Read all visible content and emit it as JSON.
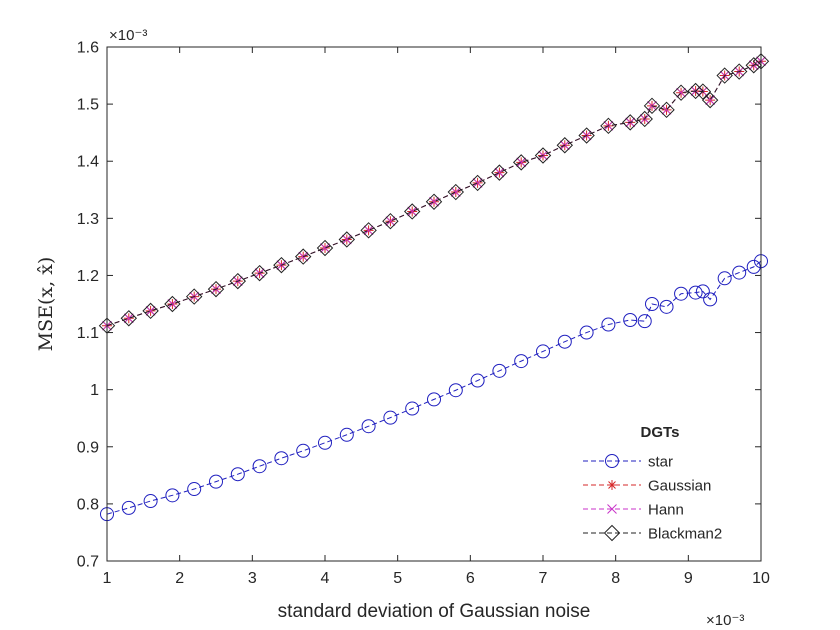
{
  "chart_data": {
    "type": "line",
    "xlabel": "standard deviation of Gaussian noise",
    "ylabel": "MSE(x, x̂)",
    "x_exponent": "×10⁻³",
    "y_exponent": "×10⁻³",
    "xlim": [
      1,
      10
    ],
    "ylim": [
      0.7,
      1.6
    ],
    "xticks": [
      "1",
      "2",
      "3",
      "4",
      "5",
      "6",
      "7",
      "8",
      "9",
      "10"
    ],
    "yticks": [
      "0.7",
      "0.8",
      "0.9",
      "1",
      "1.1",
      "1.2",
      "1.3",
      "1.4",
      "1.5",
      "1.6"
    ],
    "legend": {
      "title": "DGTs",
      "position": "bottom-right",
      "entries": [
        "star",
        "Gaussian",
        "Hann",
        "Blackman2"
      ]
    },
    "grid": false,
    "series": [
      {
        "name": "star",
        "color": "#1f1fbf",
        "marker": "circle",
        "x": [
          1.0,
          1.3,
          1.6,
          1.9,
          2.2,
          2.5,
          2.8,
          3.1,
          3.4,
          3.7,
          4.0,
          4.3,
          4.6,
          4.9,
          5.2,
          5.5,
          5.8,
          6.1,
          6.4,
          6.7,
          7.0,
          7.3,
          7.6,
          7.9,
          8.2,
          8.4,
          8.5,
          8.7,
          8.9,
          9.1,
          9.2,
          9.3,
          9.5,
          9.7,
          9.9,
          10.0
        ],
        "y": [
          0.782,
          0.793,
          0.805,
          0.815,
          0.826,
          0.839,
          0.852,
          0.866,
          0.88,
          0.893,
          0.907,
          0.921,
          0.936,
          0.951,
          0.967,
          0.983,
          0.999,
          1.016,
          1.033,
          1.05,
          1.067,
          1.084,
          1.1,
          1.114,
          1.122,
          1.12,
          1.15,
          1.145,
          1.168,
          1.17,
          1.172,
          1.158,
          1.195,
          1.205,
          1.215,
          1.225
        ]
      },
      {
        "name": "Gaussian",
        "color": "#d62728",
        "marker": "asterisk",
        "x": [
          1.0,
          1.3,
          1.6,
          1.9,
          2.2,
          2.5,
          2.8,
          3.1,
          3.4,
          3.7,
          4.0,
          4.3,
          4.6,
          4.9,
          5.2,
          5.5,
          5.8,
          6.1,
          6.4,
          6.7,
          7.0,
          7.3,
          7.6,
          7.9,
          8.2,
          8.4,
          8.5,
          8.7,
          8.9,
          9.1,
          9.2,
          9.3,
          9.5,
          9.7,
          9.9,
          10.0
        ],
        "y": [
          1.112,
          1.125,
          1.138,
          1.15,
          1.163,
          1.176,
          1.19,
          1.204,
          1.218,
          1.233,
          1.248,
          1.263,
          1.279,
          1.295,
          1.312,
          1.329,
          1.346,
          1.362,
          1.38,
          1.398,
          1.41,
          1.428,
          1.445,
          1.462,
          1.468,
          1.474,
          1.497,
          1.49,
          1.52,
          1.523,
          1.522,
          1.507,
          1.55,
          1.557,
          1.568,
          1.575
        ]
      },
      {
        "name": "Hann",
        "color": "#c832c8",
        "marker": "cross",
        "x": [
          1.0,
          1.3,
          1.6,
          1.9,
          2.2,
          2.5,
          2.8,
          3.1,
          3.4,
          3.7,
          4.0,
          4.3,
          4.6,
          4.9,
          5.2,
          5.5,
          5.8,
          6.1,
          6.4,
          6.7,
          7.0,
          7.3,
          7.6,
          7.9,
          8.2,
          8.4,
          8.5,
          8.7,
          8.9,
          9.1,
          9.2,
          9.3,
          9.5,
          9.7,
          9.9,
          10.0
        ],
        "y": [
          1.112,
          1.125,
          1.138,
          1.15,
          1.163,
          1.176,
          1.19,
          1.204,
          1.218,
          1.233,
          1.248,
          1.263,
          1.279,
          1.295,
          1.312,
          1.329,
          1.346,
          1.362,
          1.38,
          1.398,
          1.41,
          1.428,
          1.445,
          1.462,
          1.468,
          1.474,
          1.497,
          1.49,
          1.52,
          1.523,
          1.522,
          1.507,
          1.55,
          1.557,
          1.568,
          1.575
        ]
      },
      {
        "name": "Blackman2",
        "color": "#222222",
        "marker": "diamond",
        "x": [
          1.0,
          1.3,
          1.6,
          1.9,
          2.2,
          2.5,
          2.8,
          3.1,
          3.4,
          3.7,
          4.0,
          4.3,
          4.6,
          4.9,
          5.2,
          5.5,
          5.8,
          6.1,
          6.4,
          6.7,
          7.0,
          7.3,
          7.6,
          7.9,
          8.2,
          8.4,
          8.5,
          8.7,
          8.9,
          9.1,
          9.2,
          9.3,
          9.5,
          9.7,
          9.9,
          10.0
        ],
        "y": [
          1.112,
          1.125,
          1.138,
          1.15,
          1.163,
          1.176,
          1.19,
          1.204,
          1.218,
          1.233,
          1.248,
          1.263,
          1.279,
          1.295,
          1.312,
          1.329,
          1.346,
          1.362,
          1.38,
          1.398,
          1.41,
          1.428,
          1.445,
          1.462,
          1.468,
          1.474,
          1.497,
          1.49,
          1.52,
          1.523,
          1.522,
          1.507,
          1.55,
          1.557,
          1.568,
          1.575
        ]
      }
    ]
  }
}
